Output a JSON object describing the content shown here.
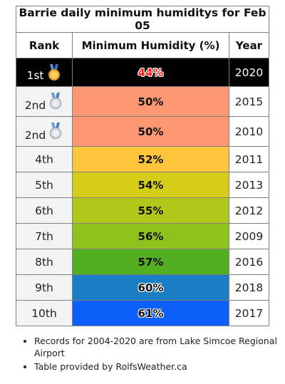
{
  "title": "Barrie daily minimum humiditys for Feb 05",
  "headers": {
    "rank": "Rank",
    "value": "Minimum Humidity (%)",
    "year": "Year"
  },
  "rows": [
    {
      "rank": "1st",
      "medal": "gold-medal-icon",
      "value": "44%",
      "year": "2020",
      "color": "#000000"
    },
    {
      "rank": "2nd",
      "medal": "silver-medal-icon",
      "value": "50%",
      "year": "2015",
      "color": "#fd9673"
    },
    {
      "rank": "2nd",
      "medal": "silver-medal-icon",
      "value": "50%",
      "year": "2010",
      "color": "#fd9673"
    },
    {
      "rank": "4th",
      "value": "52%",
      "year": "2011",
      "color": "#fdc43c"
    },
    {
      "rank": "5th",
      "value": "54%",
      "year": "2013",
      "color": "#d5cd17"
    },
    {
      "rank": "6th",
      "value": "55%",
      "year": "2012",
      "color": "#b1c81a"
    },
    {
      "rank": "7th",
      "value": "56%",
      "year": "2009",
      "color": "#8ec31d"
    },
    {
      "rank": "8th",
      "value": "57%",
      "year": "2016",
      "color": "#53ae22"
    },
    {
      "rank": "9th",
      "value": "60%",
      "year": "2018",
      "color": "#1a7ec4"
    },
    {
      "rank": "10th",
      "value": "61%",
      "year": "2017",
      "color": "#0d5ff9"
    }
  ],
  "notes": [
    "Records for 2004-2020 are from Lake Simcoe Regional Airport",
    "Table provided by RolfsWeather.ca"
  ]
}
